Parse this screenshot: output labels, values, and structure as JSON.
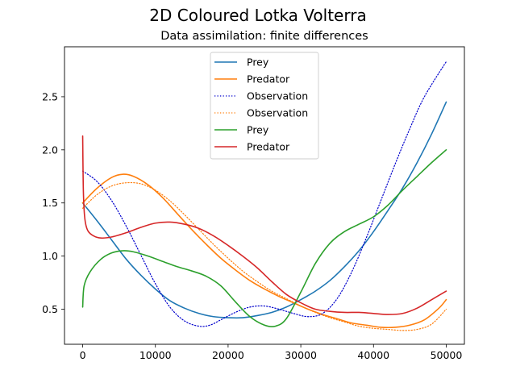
{
  "figure": {
    "suptitle": "2D Coloured Lotka Volterra",
    "title": "Data assimilation: finite differences"
  },
  "chart_data": {
    "type": "line",
    "title": "Data assimilation: finite differences",
    "xlabel": "",
    "ylabel": "",
    "xlim": [
      -2500,
      52500
    ],
    "ylim": [
      0.17,
      2.97
    ],
    "xticks": [
      0,
      10000,
      20000,
      30000,
      40000,
      50000
    ],
    "yticks": [
      0.5,
      1.0,
      1.5,
      2.0,
      2.5
    ],
    "xtick_labels": [
      "0",
      "10000",
      "20000",
      "30000",
      "40000",
      "50000"
    ],
    "ytick_labels": [
      "0.5",
      "1.0",
      "1.5",
      "2.0",
      "2.5"
    ],
    "grid": false,
    "legend_position": "top-center",
    "series": [
      {
        "name": "Prey",
        "color": "#1f77b4",
        "style": "solid",
        "x": [
          0,
          2000,
          4000,
          6000,
          8000,
          10000,
          12000,
          14000,
          16000,
          18000,
          20000,
          22000,
          24000,
          26000,
          28000,
          30000,
          32000,
          34000,
          36000,
          38000,
          40000,
          42000,
          44000,
          46000,
          48000,
          50000
        ],
        "y": [
          1.5,
          1.33,
          1.15,
          0.97,
          0.82,
          0.69,
          0.58,
          0.51,
          0.46,
          0.43,
          0.42,
          0.42,
          0.44,
          0.47,
          0.52,
          0.59,
          0.67,
          0.77,
          0.9,
          1.05,
          1.23,
          1.43,
          1.64,
          1.88,
          2.15,
          2.45
        ]
      },
      {
        "name": "Predator",
        "color": "#ff7f0e",
        "style": "solid",
        "x": [
          0,
          2000,
          4000,
          5500,
          7000,
          9000,
          11000,
          13000,
          15000,
          17000,
          19000,
          21000,
          23000,
          25000,
          27000,
          29000,
          31000,
          33000,
          35000,
          37000,
          39000,
          41000,
          43000,
          45000,
          47000,
          49000,
          50000
        ],
        "y": [
          1.5,
          1.64,
          1.74,
          1.77,
          1.75,
          1.67,
          1.55,
          1.4,
          1.25,
          1.11,
          0.98,
          0.87,
          0.77,
          0.69,
          0.62,
          0.56,
          0.5,
          0.45,
          0.41,
          0.37,
          0.35,
          0.33,
          0.33,
          0.35,
          0.4,
          0.51,
          0.59
        ]
      },
      {
        "name": "Observation",
        "color": "#0000cc",
        "style": "dotted",
        "x": [
          0,
          2000,
          4000,
          6000,
          8000,
          10000,
          12000,
          14000,
          16000,
          17500,
          19000,
          21000,
          23000,
          25000,
          27000,
          29000,
          31000,
          33000,
          35000,
          37000,
          39000,
          41000,
          43000,
          45000,
          47000,
          50000
        ],
        "y": [
          1.8,
          1.7,
          1.52,
          1.28,
          1.01,
          0.74,
          0.52,
          0.39,
          0.34,
          0.35,
          0.4,
          0.47,
          0.52,
          0.53,
          0.5,
          0.46,
          0.43,
          0.46,
          0.6,
          0.85,
          1.17,
          1.52,
          1.87,
          2.2,
          2.5,
          2.83
        ]
      },
      {
        "name": "Observation",
        "color": "#ff7f0e",
        "style": "dotted",
        "x": [
          0,
          2000,
          4000,
          6000,
          8000,
          10000,
          12000,
          14000,
          16000,
          18000,
          20000,
          22000,
          24000,
          26000,
          28000,
          30000,
          32000,
          34000,
          36000,
          38000,
          40000,
          42000,
          44000,
          46000,
          48000,
          50000
        ],
        "y": [
          1.45,
          1.58,
          1.66,
          1.69,
          1.68,
          1.62,
          1.52,
          1.39,
          1.25,
          1.11,
          0.98,
          0.86,
          0.76,
          0.67,
          0.6,
          0.53,
          0.47,
          0.42,
          0.38,
          0.34,
          0.32,
          0.31,
          0.3,
          0.31,
          0.36,
          0.5
        ]
      },
      {
        "name": "Prey",
        "color": "#2ca02c",
        "style": "solid",
        "x": [
          0,
          200,
          1000,
          2500,
          4000,
          5500,
          7000,
          9000,
          11000,
          13000,
          15000,
          17000,
          19000,
          21000,
          23000,
          25000,
          26500,
          28000,
          30000,
          32000,
          34000,
          36000,
          38000,
          40000,
          42000,
          44000,
          46000,
          48000,
          50000
        ],
        "y": [
          0.52,
          0.72,
          0.85,
          0.97,
          1.03,
          1.05,
          1.04,
          1.0,
          0.95,
          0.9,
          0.86,
          0.81,
          0.72,
          0.57,
          0.43,
          0.35,
          0.34,
          0.41,
          0.66,
          0.93,
          1.12,
          1.23,
          1.3,
          1.37,
          1.48,
          1.62,
          1.75,
          1.88,
          2.0
        ]
      },
      {
        "name": "Predator",
        "color": "#d62728",
        "style": "solid",
        "x": [
          0,
          100,
          300,
          700,
          1500,
          2500,
          4000,
          6000,
          8000,
          10000,
          12000,
          14000,
          16000,
          18000,
          20000,
          22000,
          24000,
          26000,
          28000,
          30000,
          32000,
          34000,
          36000,
          38000,
          40000,
          42000,
          44000,
          46000,
          48000,
          50000
        ],
        "y": [
          2.13,
          1.6,
          1.35,
          1.24,
          1.19,
          1.17,
          1.18,
          1.22,
          1.27,
          1.31,
          1.32,
          1.3,
          1.26,
          1.19,
          1.1,
          1.0,
          0.89,
          0.76,
          0.64,
          0.56,
          0.5,
          0.48,
          0.47,
          0.47,
          0.46,
          0.45,
          0.46,
          0.51,
          0.59,
          0.67
        ]
      }
    ]
  }
}
